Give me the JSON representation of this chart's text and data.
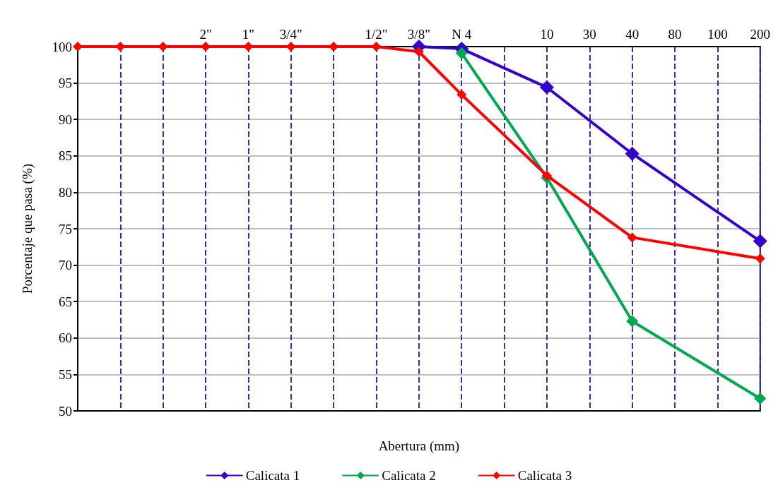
{
  "chart_data": {
    "type": "line",
    "xlabel": "Abertura (mm)",
    "ylabel": "Porcentaje que pasa (%)",
    "categories": [
      null,
      null,
      null,
      "2\"",
      "1\"",
      "3/4\"",
      null,
      "1/2\"",
      "3/8\"",
      "N 4",
      null,
      "10",
      "30",
      "40",
      "80",
      "100",
      "200"
    ],
    "ylim": [
      50,
      100
    ],
    "yticks": [
      50,
      55,
      60,
      65,
      70,
      75,
      80,
      85,
      90,
      95,
      100
    ],
    "grid": true,
    "legend": "bottom",
    "marker": "diamond",
    "line_style": "solid",
    "series": [
      {
        "name": "Calicata 1",
        "color": "#3300cc",
        "values": [
          null,
          null,
          null,
          null,
          null,
          null,
          null,
          null,
          100,
          99.7,
          null,
          94.4,
          null,
          85.3,
          null,
          null,
          73.3
        ]
      },
      {
        "name": "Calicata 2",
        "color": "#00a651",
        "values": [
          null,
          null,
          null,
          null,
          null,
          null,
          null,
          null,
          null,
          99.1,
          null,
          82.0,
          null,
          62.3,
          null,
          null,
          51.7
        ]
      },
      {
        "name": "Calicata 3",
        "color": "#ff0000",
        "values": [
          100,
          100,
          100,
          100,
          100,
          100,
          100,
          100,
          99.3,
          93.4,
          null,
          82.3,
          null,
          73.8,
          null,
          null,
          70.9
        ]
      }
    ]
  }
}
